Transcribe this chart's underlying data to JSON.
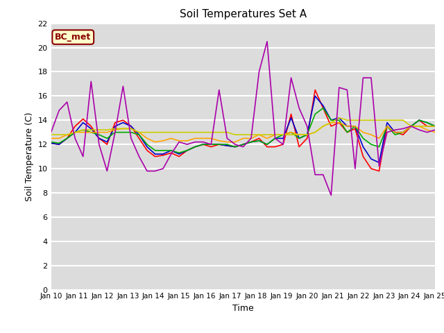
{
  "title": "Soil Temperatures Set A",
  "xlabel": "Time",
  "ylabel": "Soil Temperature (C)",
  "ylim": [
    0,
    22
  ],
  "yticks": [
    0,
    2,
    4,
    6,
    8,
    10,
    12,
    14,
    16,
    18,
    20,
    22
  ],
  "x_labels": [
    "Jan 10",
    "Jan 11",
    "Jan 12",
    "Jan 13",
    "Jan 14",
    "Jan 15",
    "Jan 16",
    "Jan 17",
    "Jan 18",
    "Jan 19",
    "Jan 20",
    "Jan 21",
    "Jan 22",
    "Jan 23",
    "Jan 24",
    "Jan 25"
  ],
  "annotation_text": "BC_met",
  "annotation_color": "#8B0000",
  "annotation_bg": "#FFFFCC",
  "series": {
    "-2cm": {
      "color": "#FF0000",
      "y": [
        12.1,
        12.0,
        12.5,
        13.5,
        14.1,
        13.5,
        12.5,
        12.0,
        13.8,
        14.0,
        13.5,
        12.5,
        11.5,
        11.0,
        11.1,
        11.3,
        11.0,
        11.5,
        11.8,
        12.0,
        11.8,
        12.0,
        11.9,
        11.8,
        12.0,
        12.2,
        12.5,
        11.8,
        11.8,
        12.0,
        14.5,
        11.8,
        12.5,
        16.5,
        15.0,
        13.5,
        13.8,
        13.0,
        13.3,
        11.0,
        10.0,
        9.8,
        13.5,
        13.0,
        12.8,
        13.5,
        14.0,
        13.5,
        13.5
      ]
    },
    "-4cm": {
      "color": "#0000CC",
      "y": [
        12.1,
        12.0,
        12.5,
        13.0,
        13.8,
        13.3,
        12.5,
        12.2,
        13.5,
        13.8,
        13.5,
        12.8,
        11.8,
        11.2,
        11.2,
        11.5,
        11.2,
        11.5,
        11.8,
        12.0,
        12.0,
        12.0,
        11.9,
        11.8,
        12.0,
        12.2,
        12.3,
        12.0,
        12.5,
        12.5,
        14.2,
        12.5,
        12.8,
        16.0,
        15.2,
        14.0,
        14.2,
        13.5,
        13.5,
        11.8,
        10.8,
        10.5,
        13.8,
        13.0,
        13.0,
        13.5,
        14.0,
        13.8,
        13.5
      ]
    },
    "-8cm": {
      "color": "#00AA00",
      "y": [
        12.2,
        12.1,
        12.5,
        13.0,
        13.2,
        13.0,
        12.8,
        12.5,
        13.0,
        13.0,
        13.0,
        12.8,
        12.0,
        11.5,
        11.5,
        11.5,
        11.3,
        11.5,
        11.8,
        12.0,
        12.0,
        12.0,
        12.0,
        11.8,
        12.0,
        12.2,
        12.3,
        12.0,
        12.5,
        12.8,
        13.0,
        12.5,
        12.8,
        14.5,
        15.0,
        14.0,
        14.0,
        13.0,
        13.5,
        12.5,
        12.0,
        11.8,
        13.5,
        12.8,
        13.0,
        13.5,
        14.0,
        13.8,
        13.5
      ]
    },
    "-16cm": {
      "color": "#FFA500",
      "y": [
        12.5,
        12.5,
        12.8,
        13.0,
        13.0,
        13.0,
        13.0,
        13.0,
        13.2,
        13.3,
        13.3,
        13.0,
        12.5,
        12.2,
        12.3,
        12.5,
        12.3,
        12.3,
        12.5,
        12.5,
        12.5,
        12.3,
        12.2,
        12.2,
        12.5,
        12.5,
        12.8,
        12.5,
        12.8,
        12.8,
        13.0,
        12.8,
        12.8,
        13.0,
        13.5,
        13.8,
        13.8,
        13.5,
        13.5,
        13.0,
        12.8,
        12.5,
        13.5,
        13.0,
        13.0,
        13.5,
        13.5,
        13.2,
        13.0
      ]
    },
    "-32cm": {
      "color": "#CCCC00",
      "y": [
        12.8,
        12.8,
        12.8,
        13.0,
        13.2,
        13.2,
        13.2,
        13.2,
        13.3,
        13.3,
        13.3,
        13.0,
        13.0,
        13.0,
        13.0,
        13.0,
        13.0,
        13.0,
        13.0,
        13.0,
        13.0,
        13.0,
        13.0,
        12.8,
        12.8,
        12.8,
        12.8,
        12.8,
        12.8,
        12.8,
        12.8,
        12.8,
        12.8,
        13.0,
        13.5,
        13.8,
        14.2,
        14.0,
        14.0,
        14.0,
        14.0,
        14.0,
        14.0,
        14.0,
        14.0,
        13.5,
        13.5,
        13.5,
        13.5
      ]
    },
    "Theta_Temp": {
      "color": "#AA00AA",
      "y": [
        13.0,
        14.8,
        15.5,
        12.5,
        11.0,
        17.2,
        12.0,
        9.8,
        13.0,
        16.8,
        12.5,
        11.0,
        9.8,
        9.8,
        10.0,
        11.2,
        12.2,
        12.0,
        12.2,
        12.2,
        12.0,
        16.5,
        12.5,
        12.0,
        11.8,
        12.5,
        18.0,
        20.5,
        12.5,
        12.0,
        17.5,
        15.0,
        13.5,
        9.5,
        9.5,
        7.8,
        16.7,
        16.5,
        10.0,
        17.5,
        17.5,
        10.2,
        13.0,
        13.2,
        13.3,
        13.5,
        13.2,
        13.0,
        13.2
      ]
    }
  },
  "bg_color": "#DCDCDC",
  "grid_color": "#FFFFFF",
  "linewidth": 1.2
}
